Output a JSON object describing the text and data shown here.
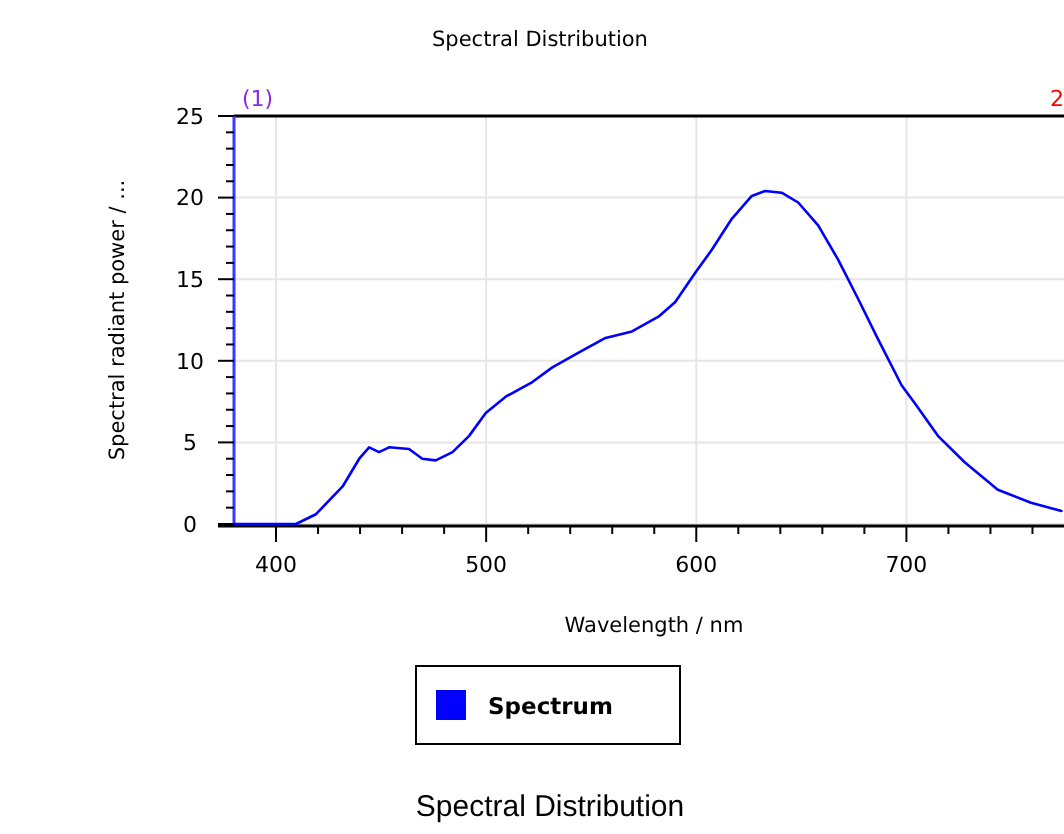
{
  "chart_data": {
    "type": "line",
    "title": "Spectral Distribution",
    "xlabel": "Wavelength / nm",
    "ylabel": "Spectral radiant power / ...",
    "annotations": [
      "(1)",
      "2",
      "Spectral Distribution"
    ],
    "xlim": [
      380,
      775
    ],
    "xticks": [
      400,
      {
        "value": 420,
        "label": null
      },
      {
        "value": 440,
        "label": null
      },
      {
        "value": 460,
        "label": null
      },
      {
        "value": 480,
        "label": null
      },
      500,
      {
        "value": 520,
        "label": null
      },
      {
        "value": 540,
        "label": null
      },
      {
        "value": 560,
        "label": null
      },
      {
        "value": 580,
        "label": null
      },
      600,
      {
        "value": 620,
        "label": null
      },
      {
        "value": 640,
        "label": null
      },
      {
        "value": 660,
        "label": null
      },
      {
        "value": 680,
        "label": null
      },
      700,
      {
        "value": 720,
        "label": null
      },
      {
        "value": 740,
        "label": null
      },
      {
        "value": 760,
        "label": null
      }
    ],
    "ylim": [
      0,
      25
    ],
    "yticks": [
      0,
      {
        "value": 1,
        "label": null
      },
      {
        "value": 2,
        "label": null
      },
      {
        "value": 3,
        "label": null
      },
      {
        "value": 4,
        "label": null
      },
      5,
      {
        "value": 6,
        "label": null
      },
      {
        "value": 7,
        "label": null
      },
      {
        "value": 8,
        "label": null
      },
      {
        "value": 9,
        "label": null
      },
      10,
      {
        "value": 11,
        "label": null
      },
      {
        "value": 12,
        "label": null
      },
      {
        "value": 13,
        "label": null
      },
      {
        "value": 14,
        "label": null
      },
      15,
      {
        "value": 16,
        "label": null
      },
      {
        "value": 17,
        "label": null
      },
      {
        "value": 18,
        "label": null
      },
      {
        "value": 19,
        "label": null
      },
      20,
      {
        "value": 21,
        "label": null
      },
      {
        "value": 22,
        "label": null
      },
      {
        "value": 23,
        "label": null
      },
      {
        "value": 24,
        "label": null
      },
      25
    ],
    "grid": true,
    "legend": "bottom",
    "marker": "none",
    "line_style": "solid",
    "x": [
      380,
      409.5,
      419,
      431.7,
      439.6,
      444.3,
      449,
      453.8,
      463.3,
      469.6,
      476,
      484,
      491.9,
      499.8,
      509.3,
      522,
      531.5,
      544,
      556.8,
      569.4,
      582,
      590,
      599.5,
      607.4,
      616.9,
      626.4,
      632.7,
      640.6,
      648.5,
      658,
      667.5,
      677,
      686.6,
      697.7,
      704,
      715,
      727.6,
      743.5,
      759.3,
      773.8
    ],
    "series": [
      {
        "name": "Spectrum",
        "color": "#0000ff",
        "values": [
          0,
          0,
          0.6,
          2.3,
          4.0,
          4.7,
          4.4,
          4.7,
          4.6,
          4.0,
          3.9,
          4.4,
          5.4,
          6.8,
          7.8,
          8.7,
          9.6,
          10.5,
          11.4,
          11.8,
          12.7,
          13.6,
          15.4,
          16.8,
          18.7,
          20.1,
          20.4,
          20.3,
          19.7,
          18.3,
          16.2,
          13.8,
          11.3,
          8.5,
          7.4,
          5.4,
          3.8,
          2.1,
          1.3,
          0.8
        ]
      }
    ]
  }
}
